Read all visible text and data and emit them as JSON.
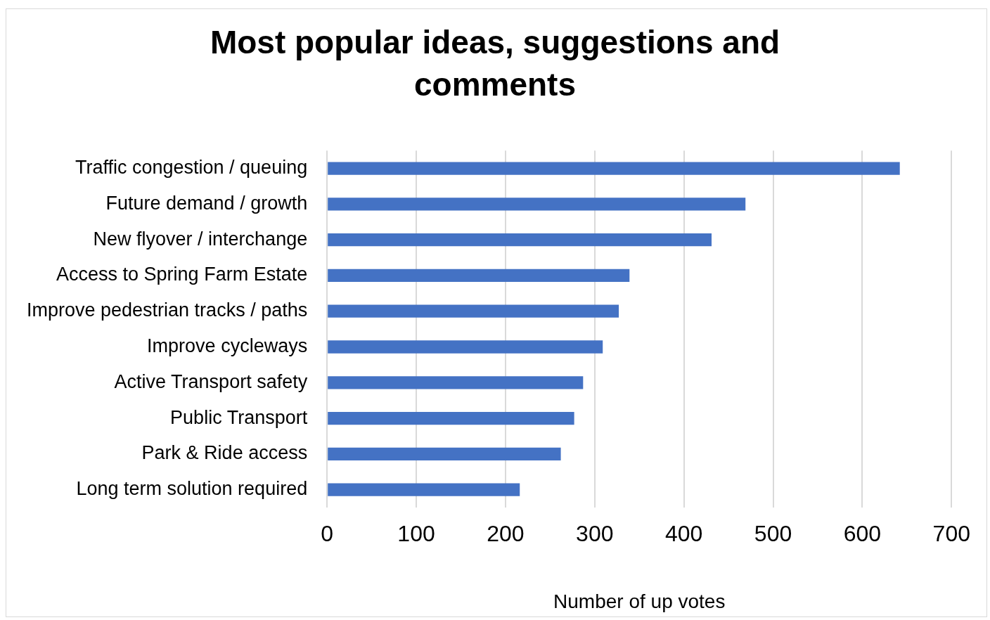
{
  "chart_data": {
    "type": "bar",
    "orientation": "horizontal",
    "title": "Most popular ideas, suggestions and comments",
    "xlabel": "Number of up votes",
    "categories": [
      "Traffic congestion / queuing",
      "Future demand / growth",
      "New flyover / interchange",
      "Access to Spring Farm Estate",
      "Improve pedestrian tracks / paths",
      "Improve cycleways",
      "Active Transport safety",
      "Public Transport",
      "Park & Ride access",
      "Long term solution required"
    ],
    "values": [
      642,
      469,
      431,
      339,
      327,
      309,
      287,
      277,
      262,
      216
    ],
    "color": "#4472c4",
    "xlim": [
      0,
      700
    ],
    "xticks": [
      0,
      100,
      200,
      300,
      400,
      500,
      600,
      700
    ],
    "grid": "x"
  }
}
